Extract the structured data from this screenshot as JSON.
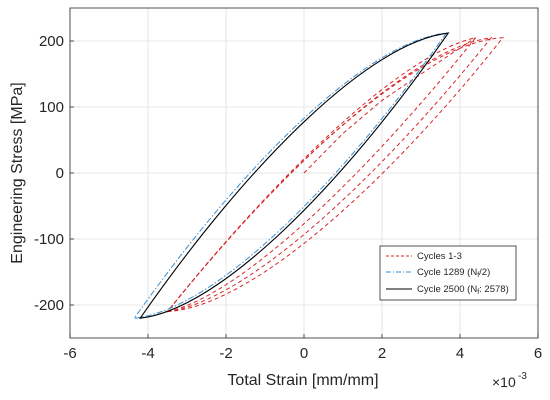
{
  "chart_data": {
    "type": "line",
    "xlabel": "Total Strain [mm/mm]",
    "ylabel": "Engineering Stress [MPa]",
    "x_scale_factor": {
      "base": "×10",
      "exponent": "-3"
    },
    "xlim": [
      -6,
      6
    ],
    "ylim": [
      -250,
      250
    ],
    "xticks": [
      -6,
      -4,
      -2,
      0,
      2,
      4,
      6
    ],
    "yticks": [
      -200,
      -100,
      0,
      100,
      200
    ],
    "xtick_labels": [
      "-6",
      "-4",
      "-2",
      "0",
      "2",
      "4",
      "6"
    ],
    "ytick_labels": [
      "-200",
      "-100",
      "0",
      "100",
      "200"
    ],
    "grid": true,
    "legend_position": "lower-right",
    "series": [
      {
        "name": "Cycles 1-3",
        "color": "#d62728",
        "style": "dashed",
        "loops": [
          {
            "min": [
              -3.5,
              -210
            ],
            "max": [
              4.4,
              205
            ]
          },
          {
            "min": [
              -3.5,
              -210
            ],
            "max": [
              4.8,
              205
            ]
          },
          {
            "min": [
              -3.5,
              -210
            ],
            "max": [
              5.1,
              205
            ]
          }
        ],
        "initial_loading": [
          [
            0.0,
            0.0
          ],
          [
            1.0,
            60
          ],
          [
            2.0,
            110
          ],
          [
            3.0,
            150
          ],
          [
            4.4,
            205
          ]
        ]
      },
      {
        "name": "Cycle 1289 (N_f/2)",
        "legend_label_main": "Cycle 1289 (N",
        "legend_label_sub": "f",
        "legend_label_tail": "/2)",
        "color": "#3a8fd6",
        "style": "dashdot",
        "loops": [
          {
            "min": [
              -4.35,
              -220
            ],
            "max": [
              3.65,
              212
            ]
          }
        ]
      },
      {
        "name": "Cycle 2500 (N_f: 2578)",
        "legend_label_main": "Cycle 2500 (N",
        "legend_label_sub": "f",
        "legend_label_tail": ": 2578)",
        "color": "#000000",
        "style": "solid",
        "loops": [
          {
            "min": [
              -4.2,
              -220
            ],
            "max": [
              3.7,
              212
            ]
          }
        ]
      }
    ]
  }
}
